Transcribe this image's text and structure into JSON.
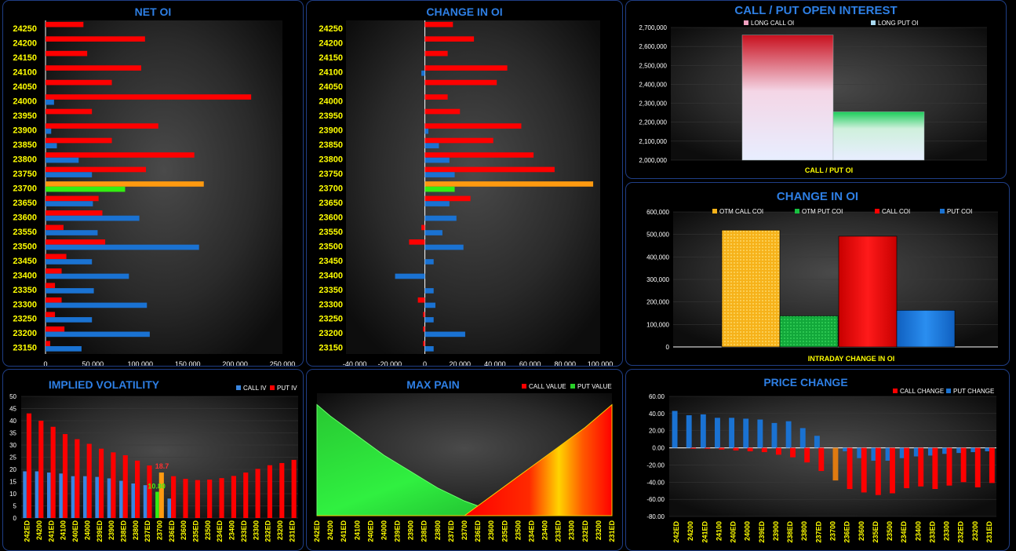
{
  "colors": {
    "call": "#ff0000",
    "put": "#1a72d2",
    "atm_call": "#ff9a10",
    "atm_put": "#33ee11",
    "title": "#2e7fe4",
    "strike_label": "#ffff00"
  },
  "strikes": [
    "24250",
    "24200",
    "24150",
    "24100",
    "24050",
    "24000",
    "23950",
    "23900",
    "23850",
    "23800",
    "23750",
    "23700",
    "23650",
    "23600",
    "23550",
    "23500",
    "23450",
    "23400",
    "23350",
    "23300",
    "23250",
    "23200",
    "23150"
  ],
  "net_oi": {
    "title": "NET OI",
    "call": [
      40000,
      105000,
      44000,
      101000,
      70000,
      217000,
      49000,
      119000,
      70000,
      157000,
      106000,
      167000,
      56000,
      60000,
      19000,
      63000,
      22000,
      17000,
      10000,
      17000,
      10000,
      20000,
      5000
    ],
    "put": [
      0,
      0,
      0,
      0,
      0,
      9000,
      0,
      6000,
      12000,
      35000,
      49000,
      84000,
      50000,
      99000,
      55000,
      162000,
      49000,
      88000,
      51000,
      107000,
      49000,
      110000,
      38000
    ],
    "xticks": [
      "0",
      "50,000",
      "100,000",
      "150,000",
      "200,000",
      "250,000"
    ],
    "xmin": 0,
    "xmax": 250000
  },
  "change_oi": {
    "title": "CHANGE IN OI",
    "call": [
      16000,
      28000,
      13000,
      47000,
      41000,
      13000,
      20000,
      55000,
      39000,
      62000,
      74000,
      96000,
      26000,
      0,
      -2000,
      -9000,
      0,
      0,
      0,
      -4000,
      -1000,
      -1000,
      -1000
    ],
    "put": [
      0,
      0,
      0,
      -2000,
      0,
      0,
      0,
      2000,
      8000,
      14000,
      17000,
      17000,
      14000,
      18000,
      10000,
      22000,
      5000,
      -17000,
      5000,
      6000,
      5000,
      23000,
      5000
    ],
    "xticks": [
      "-40,000",
      "-20,000",
      "0",
      "20,000",
      "40,000",
      "60,000",
      "80,000",
      "100,000"
    ],
    "xmin": -45000,
    "xmax": 100000
  },
  "call_put_oi": {
    "title": "CALL / PUT OPEN INTEREST",
    "legend": [
      "LONG CALL OI",
      "LONG PUT OI"
    ],
    "values": [
      2660000,
      2255000
    ],
    "yticks": [
      "2,700,000",
      "2,600,000",
      "2,500,000",
      "2,400,000",
      "2,300,000",
      "2,200,000",
      "2,100,000",
      "2,000,000"
    ],
    "ymin": 2000000,
    "ymax": 2700000,
    "xlabel": "CALL / PUT OI"
  },
  "intraday_coi": {
    "title": "CHANGE IN OI",
    "legend": [
      "OTM CALL COI",
      "OTM PUT COI",
      "CALL COI",
      "PUT COI"
    ],
    "values": [
      519000,
      138000,
      492000,
      163000
    ],
    "yticks": [
      "600,000",
      "500,000",
      "400,000",
      "300,000",
      "200,000",
      "100,000",
      "0"
    ],
    "ymin": 0,
    "ymax": 600000,
    "xlabel": "INTRADAY CHANGE IN OI"
  },
  "bottom_categories": [
    "24250",
    "24200",
    "24150",
    "24100",
    "24050",
    "24000",
    "23950",
    "23900",
    "23850",
    "23800",
    "23750",
    "23700",
    "23650",
    "23600",
    "23550",
    "23500",
    "23450",
    "23400",
    "23350",
    "23300",
    "23250",
    "23200",
    "23150"
  ],
  "bottom_category_labels": [
    "242ED",
    "24200",
    "241ED",
    "24100",
    "240ED",
    "24000",
    "239ED",
    "23900",
    "238ED",
    "23800",
    "237ED",
    "23700",
    "236ED",
    "23600",
    "235ED",
    "23500",
    "234ED",
    "23400",
    "233ED",
    "23300",
    "232ED",
    "23200",
    "231ED"
  ],
  "iv": {
    "title": "IMPLIED VOLATILITY",
    "legend": [
      "CALL IV",
      "PUT IV"
    ],
    "call": [
      19.2,
      19.2,
      18.7,
      18.3,
      17.2,
      17.2,
      16.9,
      16.3,
      15.3,
      14.2,
      13.5,
      10.8,
      8,
      null,
      null,
      null,
      null,
      null,
      null,
      null,
      null,
      null,
      null
    ],
    "put": [
      43,
      40,
      37.5,
      34.5,
      32.4,
      30.5,
      28.5,
      27,
      25.8,
      23.6,
      21.6,
      18.7,
      17.2,
      16.1,
      15.6,
      15.8,
      16.4,
      17.3,
      18.7,
      20.2,
      21.7,
      22.6,
      23.9
    ],
    "atm_index": 11,
    "atm_call_label": "10.80",
    "atm_put_label": "18.7",
    "yticks": [
      "50",
      "45",
      "40",
      "35",
      "30",
      "25",
      "20",
      "15",
      "10",
      "5",
      "0"
    ],
    "ymin": 0,
    "ymax": 50
  },
  "max_pain": {
    "title": "MAX PAIN",
    "legend": [
      "CALL VALUE",
      "PUT VALUE"
    ],
    "call": [
      0,
      0,
      0,
      0,
      0,
      0,
      0,
      0,
      0,
      0,
      0,
      0,
      6,
      12,
      18,
      24,
      30,
      36,
      42,
      48,
      54,
      61,
      68
    ],
    "put": [
      68,
      61,
      55,
      49,
      43,
      37,
      32,
      27,
      22,
      17,
      13,
      9,
      6,
      4,
      2,
      1,
      0,
      0,
      0,
      0,
      0,
      0,
      0
    ],
    "ymin": 0,
    "ymax": 75
  },
  "price_change": {
    "title": "PRICE CHANGE",
    "legend": [
      "CALL CHANGE",
      "PUT CHANGE"
    ],
    "call": [
      0,
      -1,
      -1,
      -2,
      -3,
      -4,
      -5,
      -8,
      -11,
      -17,
      -27,
      -38,
      -48,
      -52,
      -55,
      -53,
      -47,
      -45,
      -48,
      -44,
      -40,
      -46,
      -41
    ],
    "put": [
      43,
      38,
      39,
      35,
      35,
      34,
      33,
      29,
      31,
      23,
      14,
      0,
      -4,
      -12,
      -15,
      -15,
      -12,
      -10,
      -9,
      -7,
      -6,
      -5,
      -4
    ],
    "atm_index": 11,
    "yticks": [
      "60.00",
      "40.00",
      "20.00",
      "0.00",
      "-20.00",
      "-40.00",
      "-60.00",
      "-80.00"
    ],
    "ymin": -80,
    "ymax": 60
  }
}
